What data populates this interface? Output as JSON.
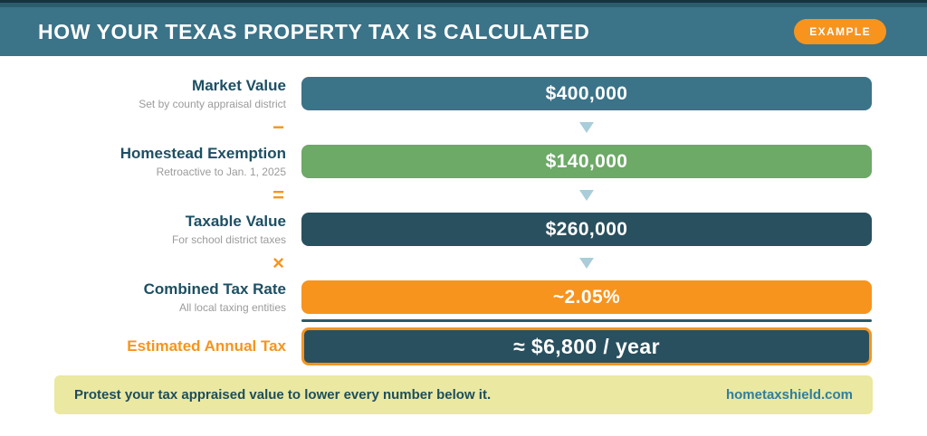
{
  "header": {
    "title": "HOW YOUR TEXAS PROPERTY TAX IS CALCULATED",
    "badge": "EXAMPLE"
  },
  "rows": [
    {
      "label": "Market Value",
      "sublabel": "Set by county appraisal district",
      "value": "$400,000",
      "bar_color": "#3b7388",
      "operator_after": "−"
    },
    {
      "label": "Homestead Exemption",
      "sublabel": "Retroactive to Jan. 1, 2025",
      "value": "$140,000",
      "bar_color": "#6da967",
      "operator_after": "="
    },
    {
      "label": "Taxable Value",
      "sublabel": "For school district taxes",
      "value": "$260,000",
      "bar_color": "#29505f",
      "operator_after": "×"
    },
    {
      "label": "Combined Tax Rate",
      "sublabel": "All local taxing entities",
      "value": "~2.05%",
      "bar_color": "#f7941d",
      "operator_after": ""
    },
    {
      "label": "Estimated Annual Tax",
      "sublabel": "",
      "value": "≈ $6,800 / year",
      "bar_color": "#29505f"
    }
  ],
  "footer": {
    "message": "Protest your tax appraised value to lower every number below it.",
    "site": "hometaxshield.com"
  },
  "colors": {
    "header_teal": "#3b7388",
    "dark_teal": "#29505f",
    "green": "#6da967",
    "orange_accent": "#f7941d",
    "arrow_blue": "#a9cdd9",
    "footer_yellow": "#ebe8a1",
    "label_teal": "#1d4f63",
    "site_link_blue": "#2e7ea0"
  }
}
